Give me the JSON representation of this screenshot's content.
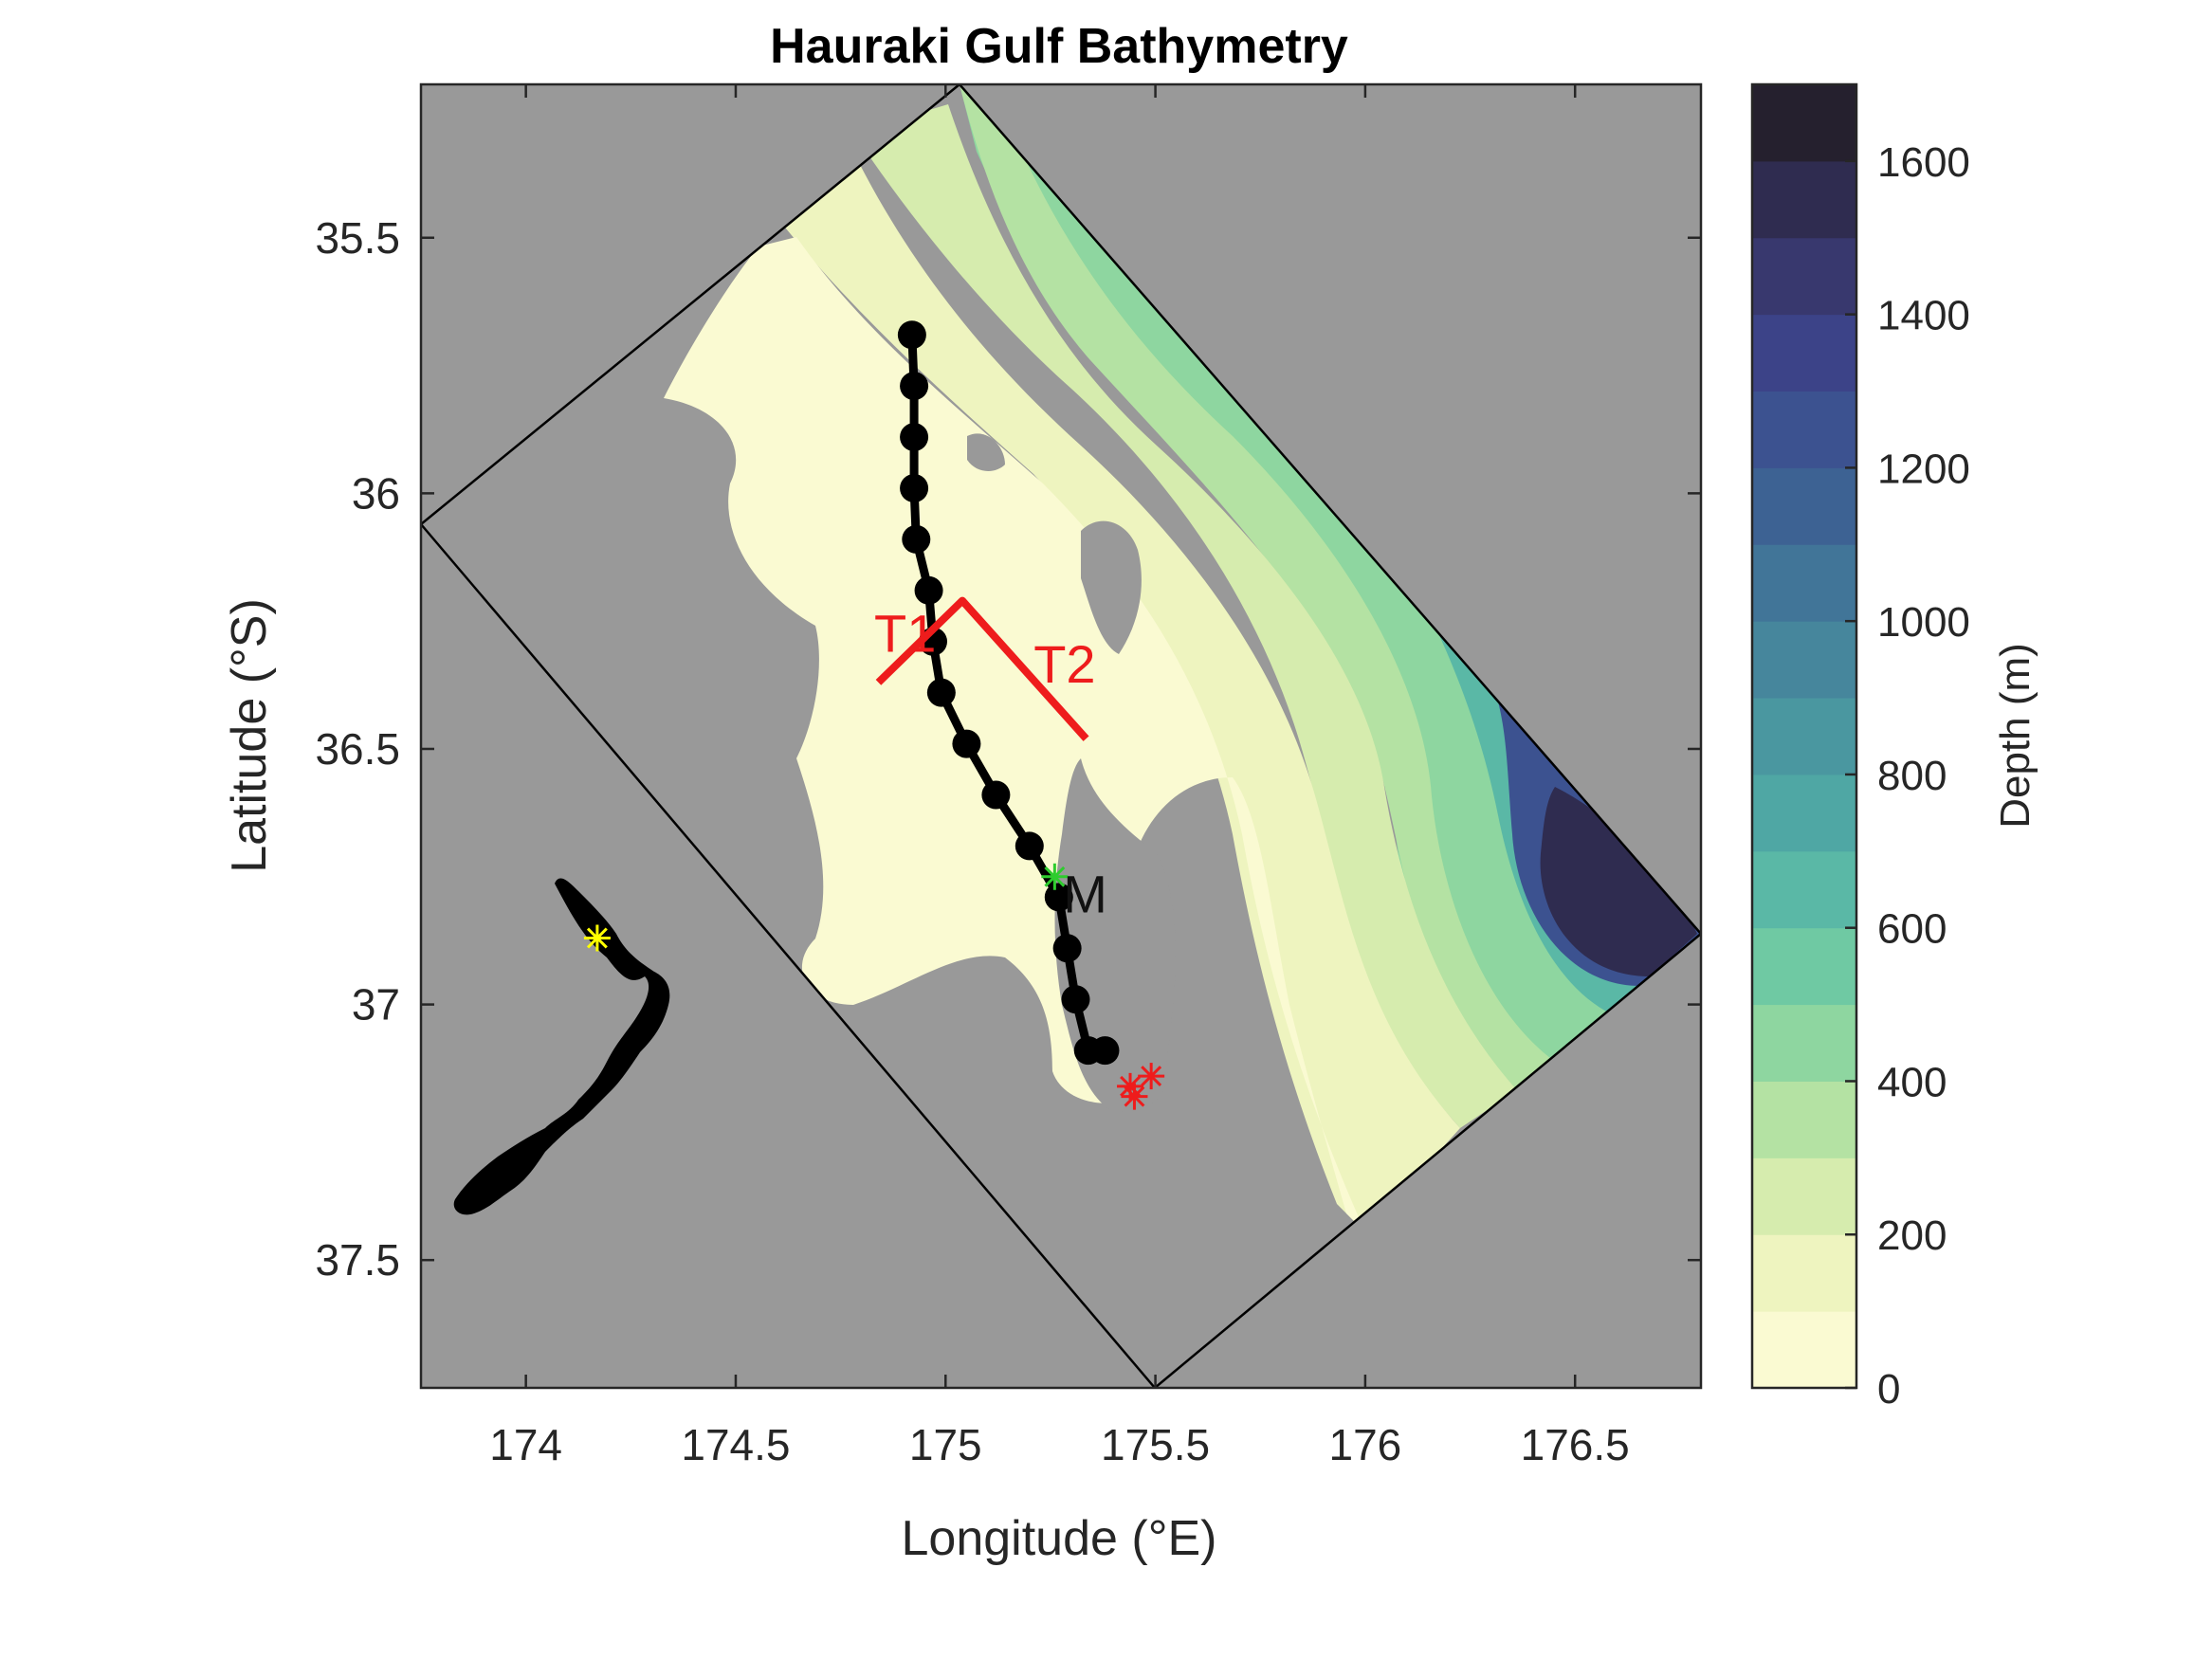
{
  "chart_data": {
    "type": "heatmap",
    "title": "Hauraki Gulf Bathymetry",
    "xlabel": "Longitude (°E)",
    "ylabel": "Latitude (°S)",
    "xlim": [
      173.75,
      176.8
    ],
    "ylim": [
      35.2,
      37.75
    ],
    "y_reversed": true,
    "xticks": [
      174,
      174.5,
      175,
      175.5,
      176,
      176.5
    ],
    "xtick_labels": [
      "174",
      "174.5",
      "175",
      "175.5",
      "176",
      "176.5"
    ],
    "yticks": [
      35.5,
      36,
      36.5,
      37,
      37.5
    ],
    "ytick_labels": [
      "35.5",
      "36",
      "36.5",
      "37",
      "37.5"
    ],
    "grid": false,
    "land_color": "#999999",
    "colorbar": {
      "label": "Depth (m)",
      "range": [
        0,
        1700
      ],
      "ticks": [
        0,
        200,
        400,
        600,
        800,
        1000,
        1200,
        1400,
        1600
      ],
      "tick_labels": [
        "0",
        "200",
        "400",
        "600",
        "800",
        "1000",
        "1200",
        "1400",
        "1600"
      ],
      "levels": [
        {
          "from": 0,
          "to": 100,
          "color": "#fafad2"
        },
        {
          "from": 100,
          "to": 200,
          "color": "#eef4bf"
        },
        {
          "from": 200,
          "to": 300,
          "color": "#d6ecae"
        },
        {
          "from": 300,
          "to": 400,
          "color": "#b4e2a3"
        },
        {
          "from": 400,
          "to": 500,
          "color": "#8ed6a0"
        },
        {
          "from": 500,
          "to": 600,
          "color": "#6fc9a3"
        },
        {
          "from": 600,
          "to": 700,
          "color": "#5ab8a6"
        },
        {
          "from": 700,
          "to": 800,
          "color": "#4fa7a4"
        },
        {
          "from": 800,
          "to": 900,
          "color": "#4a97a0"
        },
        {
          "from": 900,
          "to": 1000,
          "color": "#46869c"
        },
        {
          "from": 1000,
          "to": 1100,
          "color": "#417598"
        },
        {
          "from": 1100,
          "to": 1200,
          "color": "#3d6293"
        },
        {
          "from": 1200,
          "to": 1300,
          "color": "#3c5290"
        },
        {
          "from": 1300,
          "to": 1400,
          "color": "#3c4388"
        },
        {
          "from": 1400,
          "to": 1500,
          "color": "#38386e"
        },
        {
          "from": 1500,
          "to": 1600,
          "color": "#2f2c50"
        },
        {
          "from": 1600,
          "to": 1700,
          "color": "#25202e"
        }
      ]
    },
    "domain_boundary": {
      "lon": [
        174.77,
        176.8,
        175.53,
        173.75
      ],
      "lat": [
        35.2,
        36.85,
        37.75,
        36.05
      ]
    },
    "series": [
      {
        "type": "line-markers",
        "color": "#000000",
        "lon": [
          174.92,
          174.925,
          174.925,
          174.925,
          174.93,
          174.96,
          174.97,
          174.99,
          175.05,
          175.12,
          175.2,
          175.27,
          175.29,
          175.31,
          175.34,
          175.38
        ],
        "lat": [
          35.69,
          35.79,
          35.89,
          35.99,
          36.09,
          36.19,
          36.29,
          36.39,
          36.49,
          36.59,
          36.69,
          36.79,
          36.89,
          36.99,
          37.09,
          37.09
        ]
      },
      {
        "type": "line",
        "color": "#ee1c1c",
        "lon": [
          174.84,
          175.04,
          175.335
        ],
        "lat": [
          36.37,
          36.21,
          36.48
        ]
      }
    ],
    "markers": [
      {
        "lon": 175.26,
        "lat": 36.75,
        "color": "#2ecc2e"
      },
      {
        "lon": 175.49,
        "lat": 37.14,
        "color": "#ee1c1c"
      },
      {
        "lon": 175.44,
        "lat": 37.16,
        "color": "#ee1c1c"
      },
      {
        "lon": 175.45,
        "lat": 37.18,
        "color": "#ee1c1c"
      },
      {
        "lon": 174.17,
        "lat": 36.87,
        "color": "#ffff00"
      }
    ],
    "annotations": [
      {
        "text": "T1",
        "lon": 174.83,
        "lat": 36.31,
        "color": "#ee1c1c"
      },
      {
        "text": "T2",
        "lon": 175.21,
        "lat": 36.37,
        "color": "#ee1c1c"
      },
      {
        "text": "M",
        "lon": 175.28,
        "lat": 36.82,
        "color": "#111111"
      }
    ]
  }
}
